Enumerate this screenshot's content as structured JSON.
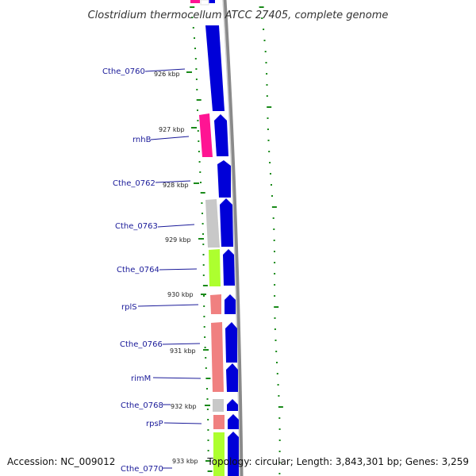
{
  "title": "Clostridium thermocellum ATCC 27405, complete genome",
  "footer": {
    "accession": "Accession: NC_009012",
    "summary": "Topology: circular; Length: 3,843,301 bp; Genes: 3,259"
  },
  "colors": {
    "forward_gene": "#0000e0",
    "rRNA_magenta": "#ff1493",
    "ribosomal_salmon": "#f08080",
    "hypothetical_gray": "#c8c8c8",
    "lime": "#adff2f",
    "backbone": "#888888",
    "gc_skew_dots": "#1a8a1a",
    "label_blue": "#1a1a99"
  },
  "gene_labels": [
    {
      "label": "Cthe_0760"
    },
    {
      "label": "rnhB"
    },
    {
      "label": "Cthe_0762"
    },
    {
      "label": "Cthe_0763"
    },
    {
      "label": "Cthe_0764"
    },
    {
      "label": "rplS"
    },
    {
      "label": "Cthe_0766"
    },
    {
      "label": "rimM"
    },
    {
      "label": "Cthe_0768"
    },
    {
      "label": "rpsP"
    },
    {
      "label": "Cthe_0770"
    }
  ],
  "kbp_ticks": [
    {
      "label": "926 kbp"
    },
    {
      "label": "927 kbp"
    },
    {
      "label": "928 kbp"
    },
    {
      "label": "929 kbp"
    },
    {
      "label": "930 kbp"
    },
    {
      "label": "931 kbp"
    },
    {
      "label": "932 kbp"
    },
    {
      "label": "933 kbp"
    }
  ]
}
